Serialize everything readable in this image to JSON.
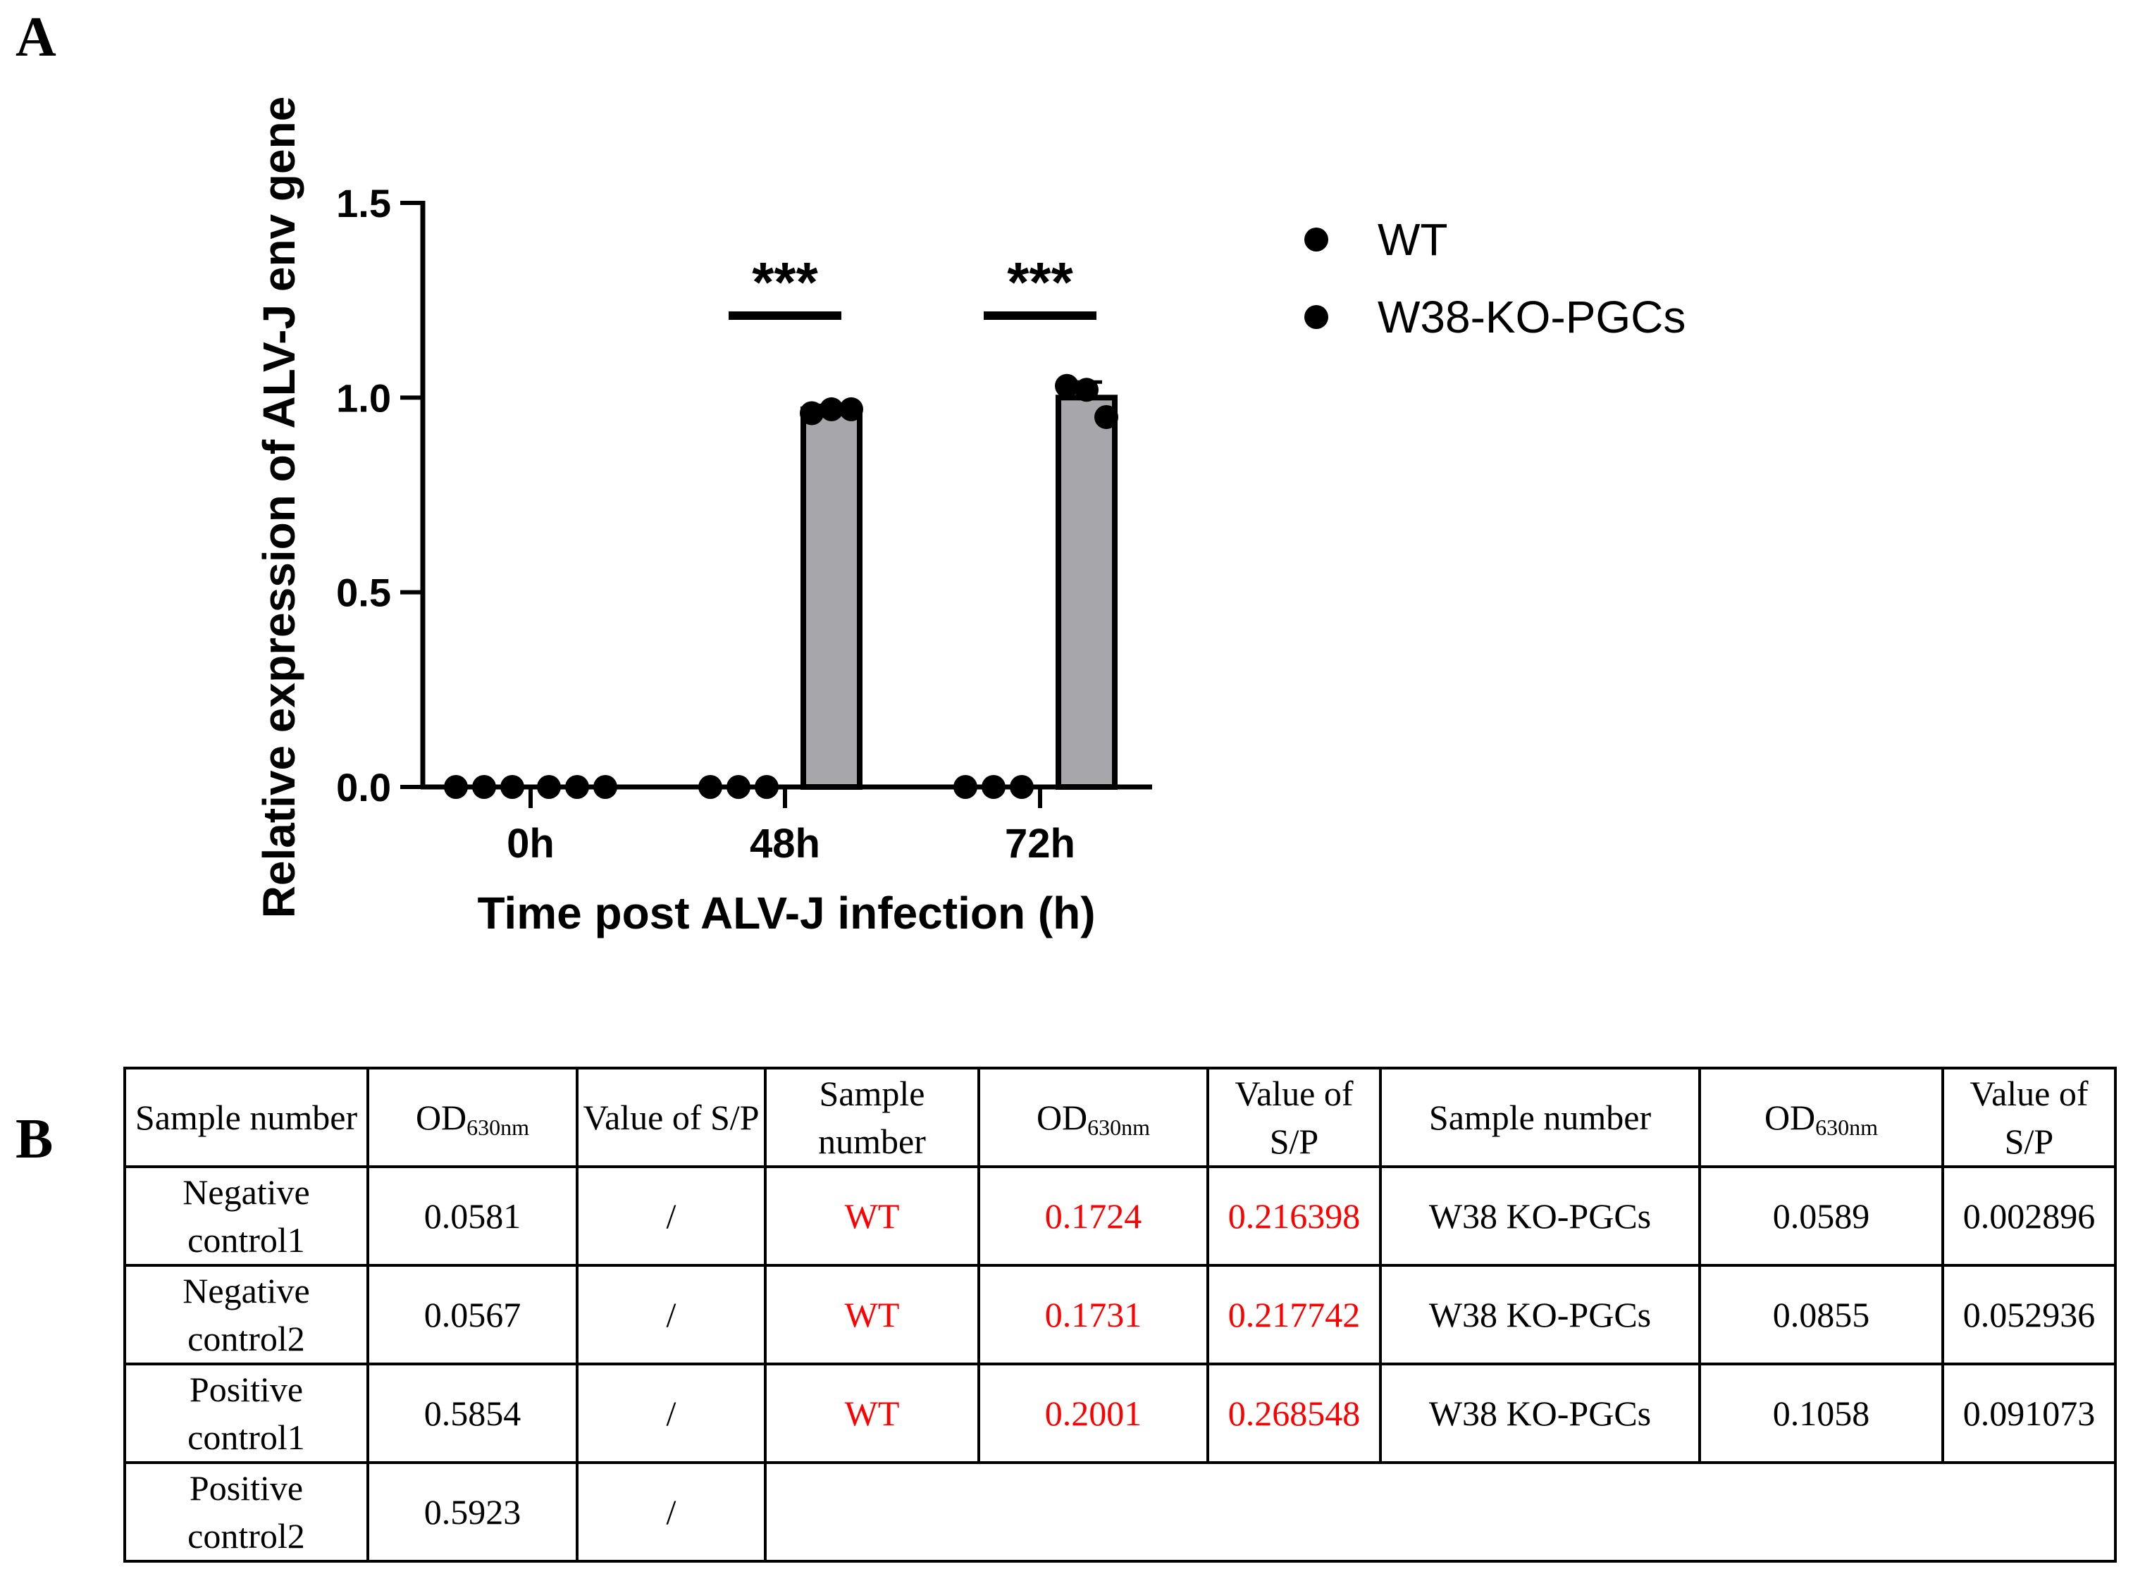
{
  "panel_labels": {
    "a": "A",
    "b": "B"
  },
  "chart_data": {
    "type": "bar",
    "categories": [
      "0h",
      "48h",
      "72h"
    ],
    "xlabel": "Time post ALV-J infection (h)",
    "ylabel": "Relative expression of ALV-J env gene",
    "ylim": [
      0,
      1.5
    ],
    "yticks": [
      "0.0",
      "0.5",
      "1.0",
      "1.5"
    ],
    "ytick_values": [
      0,
      0.5,
      1.0,
      1.5
    ],
    "legend_position": "top-right",
    "series": [
      {
        "name": "WT",
        "fill": "#ffffff",
        "values": [
          0,
          0,
          0
        ],
        "points": [
          [
            0,
            0,
            0
          ],
          [
            0,
            0,
            0
          ],
          [
            0,
            0,
            0
          ]
        ]
      },
      {
        "name": "W38-KO-PGCs",
        "fill": "#a6a6ab",
        "values": [
          0,
          0.97,
          1.0
        ],
        "error": [
          0,
          0.01,
          0.04
        ],
        "points": [
          [
            0,
            0,
            0
          ],
          [
            0.96,
            0.97,
            0.97
          ],
          [
            1.03,
            1.02,
            0.95
          ]
        ]
      }
    ],
    "significance": [
      {
        "category": "48h",
        "label": "***"
      },
      {
        "category": "72h",
        "label": "***"
      }
    ]
  },
  "table": {
    "header": {
      "sample_number": "Sample number",
      "od_main": "OD",
      "od_sub": "630nm",
      "value_sp": "Value of S/P"
    },
    "controls": [
      {
        "name": "Negative control1",
        "od": "0.0581",
        "sp": "/"
      },
      {
        "name": "Negative control2",
        "od": "0.0567",
        "sp": "/"
      },
      {
        "name": "Positive control1",
        "od": "0.5854",
        "sp": "/"
      },
      {
        "name": "Positive control2",
        "od": "0.5923",
        "sp": "/"
      }
    ],
    "wt": [
      {
        "name": "WT",
        "od": "0.1724",
        "sp": "0.216398"
      },
      {
        "name": "WT",
        "od": "0.1731",
        "sp": "0.217742"
      },
      {
        "name": "WT",
        "od": "0.2001",
        "sp": "0.268548"
      }
    ],
    "ko": [
      {
        "name": "W38 KO-PGCs",
        "od": "0.0589",
        "sp": "0.002896"
      },
      {
        "name": "W38 KO-PGCs",
        "od": "0.0855",
        "sp": "0.052936"
      },
      {
        "name": "W38 KO-PGCs",
        "od": "0.1058",
        "sp": "0.091073"
      }
    ],
    "highlight_color": "#ff0000"
  }
}
